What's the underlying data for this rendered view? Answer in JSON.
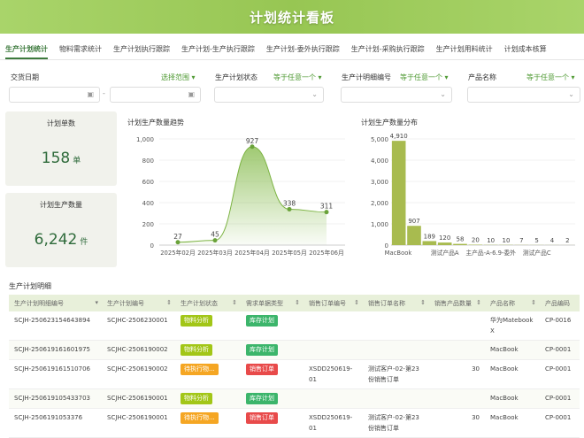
{
  "title": "计划统计看板",
  "tabs": [
    "生产计划统计",
    "物料需求统计",
    "生产计划执行跟踪",
    "生产计划-生产执行跟踪",
    "生产计划-委外执行跟踪",
    "生产计划-采购执行跟踪",
    "生产计划用料统计",
    "计划成本核算"
  ],
  "filters": {
    "date": {
      "label": "交货日期",
      "op": "选择范围 ▾",
      "sep": "-",
      "icon": "calendar-icon"
    },
    "status": {
      "label": "生产计划状态",
      "op": "等于任意一个 ▾"
    },
    "detail_no": {
      "label": "生产计明细编号",
      "op": "等于任意一个 ▾"
    },
    "product": {
      "label": "产品名称",
      "op": "等于任意一个 ▾"
    }
  },
  "kpi": [
    {
      "title": "计划单数",
      "value": "158",
      "unit": "单"
    },
    {
      "title": "计划生产数量",
      "value": "6,242",
      "unit": "件"
    }
  ],
  "colors": {
    "accent": "#3d7a3d",
    "line": "#7cb342",
    "bar": "#a8bb4f",
    "material": "#a2c617",
    "pending": "#f5a623",
    "stock": "#3cb56b",
    "sales": "#e84a4a"
  },
  "chart_data": [
    {
      "type": "area",
      "title": "计划生产数量趋势",
      "categories": [
        "2025年02月",
        "2025年03月",
        "2025年04月",
        "2025年05月",
        "2025年06月"
      ],
      "values": [
        27,
        45,
        927,
        338,
        311
      ],
      "ylim": [
        0,
        1000
      ],
      "yticks": [
        "0",
        "200",
        "400",
        "600",
        "800",
        "1,000"
      ],
      "grid": true
    },
    {
      "type": "bar",
      "title": "计划生产数量分布",
      "categories": [
        "MacBook",
        "",
        "",
        "测试产品A",
        "",
        "",
        "主产品-A-6.9-委外",
        "",
        "",
        "测试产品C",
        "",
        ""
      ],
      "values": [
        4910,
        907,
        189,
        120,
        58,
        20,
        10,
        10,
        7,
        5,
        4,
        2
      ],
      "labels": [
        "4,910",
        "907",
        "189",
        "120",
        "58",
        "20",
        "10",
        "10",
        "7",
        "5",
        "4",
        "2"
      ],
      "ylim": [
        0,
        5000
      ],
      "yticks": [
        "0",
        "1,000",
        "2,000",
        "3,000",
        "4,000",
        "5,000"
      ],
      "grid": true
    }
  ],
  "table": {
    "title": "生产计划明细",
    "columns": [
      "生产计划明细编号",
      "生产计划编号",
      "生产计划状态",
      "需求单据类型",
      "销售订单编号",
      "销售订单名称",
      "销售产品数量",
      "产品名称",
      "产品编码"
    ],
    "rows": [
      {
        "detail": "SCJH-250623154643894",
        "plan": "SCJHC-2506230001",
        "status": "物料分析",
        "status_kind": "material",
        "type": "库存计划",
        "type_kind": "stock",
        "so": "",
        "so_name": "",
        "qty": "",
        "product": "华为Matebook X",
        "code": "CP-0016"
      },
      {
        "detail": "SCJH-250619161601975",
        "plan": "SCJHC-2506190002",
        "status": "物料分析",
        "status_kind": "material",
        "type": "库存计划",
        "type_kind": "stock",
        "so": "",
        "so_name": "",
        "qty": "",
        "product": "MacBook",
        "code": "CP-0001"
      },
      {
        "detail": "SCJH-250619161510706",
        "plan": "SCJHC-2506190002",
        "status": "待执行物...",
        "status_kind": "pending",
        "type": "销售订单",
        "type_kind": "sales",
        "so": "XSDD250619-01",
        "so_name": "测试客户-02-第23份销售订单",
        "qty": "30",
        "product": "MacBook",
        "code": "CP-0001"
      },
      {
        "detail": "SCJH-250619105433703",
        "plan": "SCJHC-2506190001",
        "status": "物料分析",
        "status_kind": "material",
        "type": "库存计划",
        "type_kind": "stock",
        "so": "",
        "so_name": "",
        "qty": "",
        "product": "MacBook",
        "code": "CP-0001"
      },
      {
        "detail": "SCJH-2506191053376",
        "plan": "SCJHC-2506190001",
        "status": "待执行物...",
        "status_kind": "pending",
        "type": "销售订单",
        "type_kind": "sales",
        "so": "XSDD250619-01",
        "so_name": "测试客户-02-第23份销售订单",
        "qty": "30",
        "product": "MacBook",
        "code": "CP-0001"
      }
    ]
  }
}
